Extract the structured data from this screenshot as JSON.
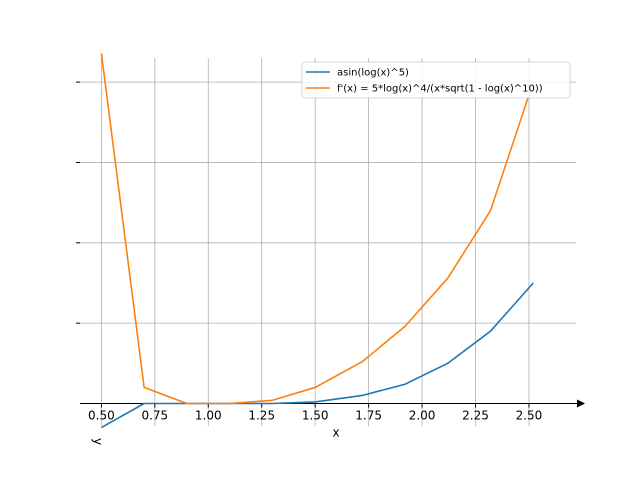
{
  "chart_data": {
    "type": "line",
    "title": "",
    "xlabel": "x",
    "ylabel": "y",
    "xlim": [
      0.4,
      2.72
    ],
    "ylim": [
      -0.14,
      2.15
    ],
    "grid": true,
    "legend_position": "top-right",
    "x_ticks": [
      0.5,
      0.75,
      1.0,
      1.25,
      1.5,
      1.75,
      2.0,
      2.25,
      2.5
    ],
    "x_tick_labels": [
      "0.50",
      "0.75",
      "1.00",
      "1.25",
      "1.50",
      "1.75",
      "2.00",
      "2.25",
      "2.50"
    ],
    "y_ticks": [
      0.5,
      1.0,
      1.5,
      2.0
    ],
    "y_tick_labels": [
      "",
      "",
      "",
      ""
    ],
    "x": [
      0.5,
      0.7,
      0.9,
      1.1,
      1.3,
      1.5,
      1.72,
      1.92,
      2.12,
      2.32,
      2.52
    ],
    "series": [
      {
        "name": "asin(log(x)^5)",
        "color": "#1f77b4",
        "values": [
          -0.15,
          0.0,
          0.0,
          0.0,
          0.0,
          0.01,
          0.05,
          0.12,
          0.25,
          0.45,
          0.75
        ]
      },
      {
        "name": "f'(x) = 5*log(x)^4/(x*sqrt(1 - log(x)^10))",
        "color": "#ff7f0e",
        "values": [
          2.18,
          0.1,
          0.0,
          0.0,
          0.02,
          0.1,
          0.26,
          0.48,
          0.78,
          1.2,
          2.0
        ]
      }
    ]
  }
}
